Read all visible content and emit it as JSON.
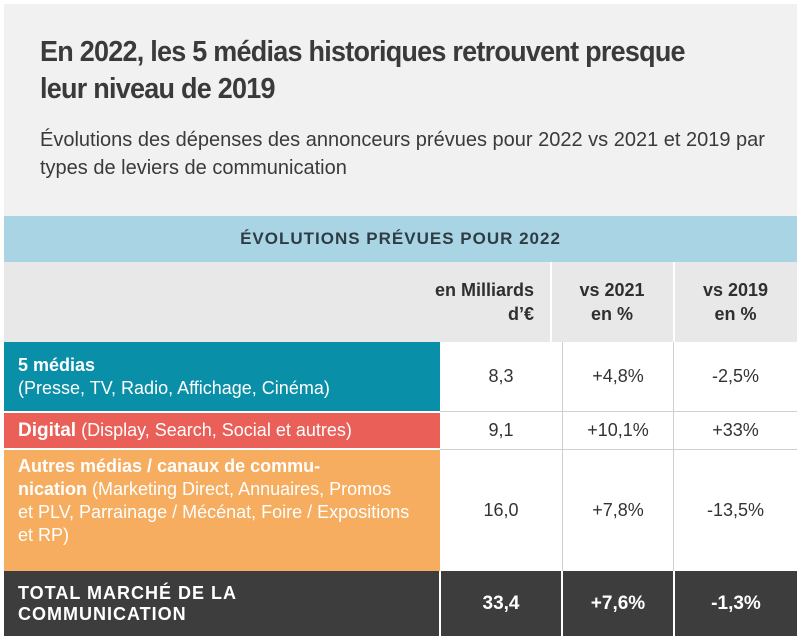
{
  "title": "En 2022, les 5 médias historiques retrouvent presque leur niveau de 2019",
  "subtitle": "Évolutions des dépenses des annonceurs prévues pour 2022 vs 2021 et 2019 par types de leviers de communication",
  "colors": {
    "band": "#a9d4e3",
    "cinq_medias": "#0a8fa8",
    "digital": "#ea5f57",
    "autres": "#f6ad60",
    "total": "#3d3d3d"
  },
  "chart_data": {
    "type": "table",
    "band_title": "ÉVOLUTIONS PRÉVUES POUR 2022",
    "columns": [
      "en Milliards\nd’€",
      "vs 2021\nen %",
      "vs 2019\nen %"
    ],
    "rows": [
      {
        "name": "5 médias",
        "detail": "(Presse, TV, Radio, Affichage, Cinéma)",
        "values": [
          "8,3",
          "+4,8%",
          "-2,5%"
        ]
      },
      {
        "name": "Digital",
        "detail": "(Display, Search, Social et autres)",
        "values": [
          "9,1",
          "+10,1%",
          "+33%"
        ]
      },
      {
        "name": "Autres médias / canaux de commu-\nnication",
        "detail": "(Marketing Direct, Annuaires, Promos et PLV, Parrainage / Mécénat, Foire / Expositions et RP)",
        "values": [
          "16,0",
          "+7,8%",
          "-13,5%"
        ]
      }
    ],
    "total": {
      "name": "TOTAL MARCHÉ DE LA\nCOMMUNICATION",
      "values": [
        "33,4",
        "+7,6%",
        "-1,3%"
      ]
    }
  }
}
